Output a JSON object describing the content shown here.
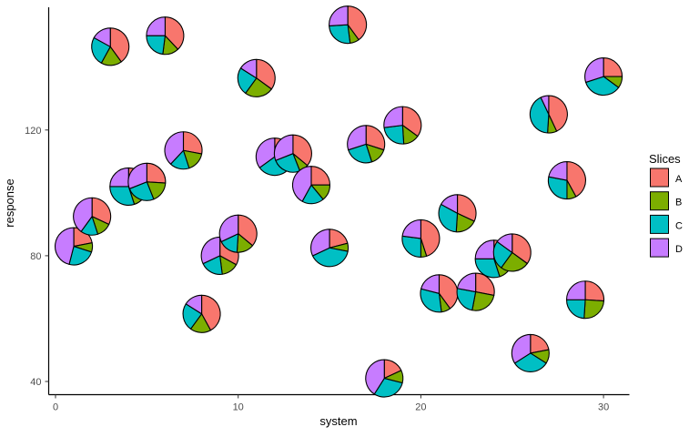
{
  "chart_data": {
    "type": "scatter-pie",
    "title": "",
    "xlabel": "system",
    "ylabel": "response",
    "x_ticks": [
      0,
      10,
      20,
      30
    ],
    "y_ticks": [
      40,
      80,
      120
    ],
    "xlim": [
      -0.4,
      31.4
    ],
    "ylim": [
      36,
      159
    ],
    "grid": "off",
    "background": "#ffffff",
    "axis_color": "#000000",
    "tick_label_color": "#4d4d4d",
    "legend": {
      "title": "Slices",
      "position": "right",
      "entries": [
        {
          "label": "A",
          "color": "#F8766D"
        },
        {
          "label": "B",
          "color": "#7CAE00"
        },
        {
          "label": "C",
          "color": "#00BFC4"
        },
        {
          "label": "D",
          "color": "#C77CFF"
        }
      ]
    },
    "slice_order": [
      "A",
      "B",
      "C",
      "D"
    ],
    "slice_start": "12-oclock-clockwise",
    "pie_outline_color": "#000000",
    "points": [
      {
        "x": 1,
        "y": 83,
        "A": 0.22,
        "B": 0.08,
        "C": 0.24,
        "D": 0.46
      },
      {
        "x": 2,
        "y": 92.5,
        "A": 0.32,
        "B": 0.13,
        "C": 0.15,
        "D": 0.4
      },
      {
        "x": 3,
        "y": 146.5,
        "A": 0.4,
        "B": 0.18,
        "C": 0.25,
        "D": 0.17
      },
      {
        "x": 4,
        "y": 102,
        "A": 0.25,
        "B": 0.2,
        "C": 0.3,
        "D": 0.25
      },
      {
        "x": 5,
        "y": 103.5,
        "A": 0.26,
        "B": 0.18,
        "C": 0.25,
        "D": 0.31
      },
      {
        "x": 6,
        "y": 150,
        "A": 0.38,
        "B": 0.14,
        "C": 0.23,
        "D": 0.25
      },
      {
        "x": 7,
        "y": 113.5,
        "A": 0.28,
        "B": 0.17,
        "C": 0.17,
        "D": 0.38
      },
      {
        "x": 8,
        "y": 61.5,
        "A": 0.42,
        "B": 0.18,
        "C": 0.24,
        "D": 0.16
      },
      {
        "x": 9,
        "y": 80,
        "A": 0.33,
        "B": 0.15,
        "C": 0.2,
        "D": 0.32
      },
      {
        "x": 10,
        "y": 87,
        "A": 0.36,
        "B": 0.15,
        "C": 0.17,
        "D": 0.32
      },
      {
        "x": 11,
        "y": 136.5,
        "A": 0.35,
        "B": 0.25,
        "C": 0.24,
        "D": 0.16
      },
      {
        "x": 12,
        "y": 111.5,
        "A": 0.28,
        "B": 0.07,
        "C": 0.3,
        "D": 0.35
      },
      {
        "x": 13,
        "y": 112.5,
        "A": 0.36,
        "B": 0.08,
        "C": 0.25,
        "D": 0.31
      },
      {
        "x": 14,
        "y": 102.5,
        "A": 0.25,
        "B": 0.14,
        "C": 0.19,
        "D": 0.42
      },
      {
        "x": 15,
        "y": 82.5,
        "A": 0.21,
        "B": 0.07,
        "C": 0.4,
        "D": 0.32
      },
      {
        "x": 16,
        "y": 153.5,
        "A": 0.4,
        "B": 0.08,
        "C": 0.26,
        "D": 0.26
      },
      {
        "x": 17,
        "y": 115.5,
        "A": 0.3,
        "B": 0.15,
        "C": 0.25,
        "D": 0.3
      },
      {
        "x": 18,
        "y": 41,
        "A": 0.18,
        "B": 0.11,
        "C": 0.3,
        "D": 0.41
      },
      {
        "x": 19,
        "y": 121.5,
        "A": 0.35,
        "B": 0.14,
        "C": 0.24,
        "D": 0.27
      },
      {
        "x": 20,
        "y": 85.5,
        "A": 0.45,
        "B": 0.05,
        "C": 0.27,
        "D": 0.23
      },
      {
        "x": 21,
        "y": 68,
        "A": 0.4,
        "B": 0.08,
        "C": 0.31,
        "D": 0.21
      },
      {
        "x": 22,
        "y": 93.5,
        "A": 0.32,
        "B": 0.19,
        "C": 0.32,
        "D": 0.17
      },
      {
        "x": 23,
        "y": 68.5,
        "A": 0.28,
        "B": 0.25,
        "C": 0.25,
        "D": 0.22
      },
      {
        "x": 24,
        "y": 79,
        "A": 0.3,
        "B": 0.15,
        "C": 0.3,
        "D": 0.25
      },
      {
        "x": 25,
        "y": 81,
        "A": 0.35,
        "B": 0.25,
        "C": 0.25,
        "D": 0.15
      },
      {
        "x": 26,
        "y": 49,
        "A": 0.22,
        "B": 0.12,
        "C": 0.32,
        "D": 0.34
      },
      {
        "x": 27,
        "y": 125,
        "A": 0.43,
        "B": 0.08,
        "C": 0.42,
        "D": 0.07
      },
      {
        "x": 28,
        "y": 104,
        "A": 0.42,
        "B": 0.08,
        "C": 0.28,
        "D": 0.22
      },
      {
        "x": 29,
        "y": 66,
        "A": 0.26,
        "B": 0.25,
        "C": 0.24,
        "D": 0.25
      },
      {
        "x": 30,
        "y": 137,
        "A": 0.25,
        "B": 0.1,
        "C": 0.35,
        "D": 0.3
      }
    ]
  }
}
